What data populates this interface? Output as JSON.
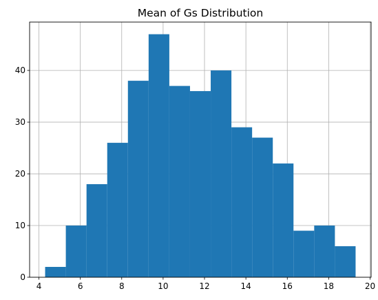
{
  "chart_data": {
    "type": "bar",
    "subtype": "histogram",
    "title": "Mean of Gs Distribution",
    "xlabel": "",
    "ylabel": "",
    "bin_edges": [
      4.3,
      5.3,
      6.3,
      7.3,
      8.3,
      9.3,
      10.3,
      11.3,
      12.3,
      13.3,
      14.3,
      15.3,
      16.3,
      17.3,
      18.3,
      19.3
    ],
    "values": [
      2,
      10,
      18,
      26,
      38,
      47,
      37,
      36,
      40,
      29,
      27,
      22,
      9,
      10,
      6
    ],
    "xlim": [
      3.55,
      20.05
    ],
    "ylim": [
      0,
      49.35
    ],
    "xticks": [
      4,
      6,
      8,
      10,
      12,
      14,
      16,
      18,
      20
    ],
    "yticks": [
      0,
      10,
      20,
      30,
      40
    ],
    "grid": true,
    "bar_color": "#1f77b4"
  }
}
